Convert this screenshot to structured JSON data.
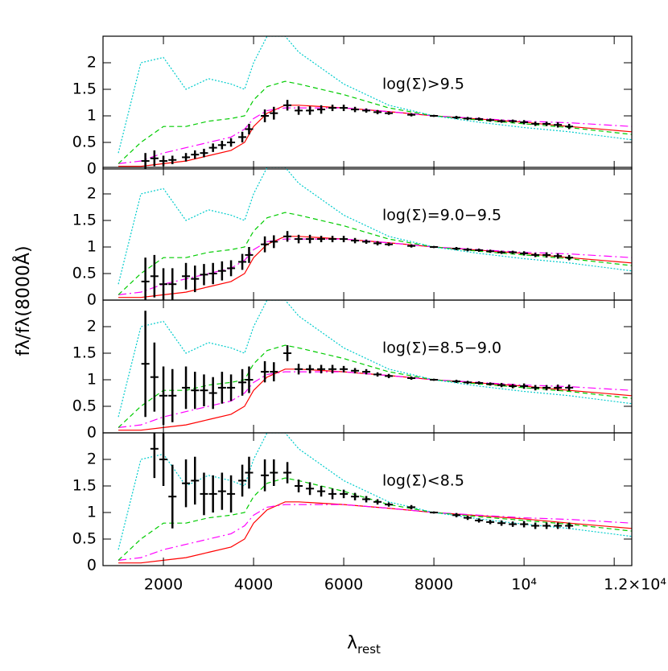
{
  "chart_data": {
    "type": "errorbar",
    "xlabel": "λ",
    "xlabel_sub": "rest",
    "ylabel": "fλ/fλ(8000Å)",
    "xlim": [
      660,
      12390
    ],
    "ylim": [
      0,
      2.5
    ],
    "xticks": [
      2000,
      4000,
      6000,
      8000,
      {
        "value": 10000,
        "label": "10⁴"
      },
      {
        "value": 12000,
        "label": "1.2×10⁴"
      }
    ],
    "yticks": [
      0,
      0.5,
      1,
      1.5,
      2
    ],
    "x": [
      1600,
      1800,
      2000,
      2200,
      2500,
      2700,
      2900,
      3100,
      3300,
      3500,
      3750,
      3900,
      4250,
      4450,
      4750,
      5000,
      5250,
      5500,
      5750,
      6000,
      6250,
      6500,
      6750,
      7000,
      7500,
      8000,
      8500,
      8750,
      9000,
      9250,
      9500,
      9750,
      10000,
      10250,
      10500,
      10750,
      11000
    ],
    "color": "#000000",
    "models": [
      {
        "color": "#ff0000",
        "dash": "none",
        "x": [
          1000,
          1500,
          2000,
          2500,
          3000,
          3500,
          3800,
          4000,
          4300,
          4700,
          5000,
          6000,
          7000,
          8000,
          9000,
          10000,
          11000,
          12390
        ],
        "values": [
          0.05,
          0.05,
          0.1,
          0.15,
          0.25,
          0.35,
          0.5,
          0.8,
          1.05,
          1.2,
          1.2,
          1.15,
          1.08,
          1.0,
          0.94,
          0.88,
          0.8,
          0.7
        ]
      },
      {
        "color": "#ff00ff",
        "dash": "10 4 2 4",
        "x": [
          1000,
          1500,
          2000,
          2500,
          3000,
          3500,
          3800,
          4000,
          4300,
          4700,
          5000,
          6000,
          7000,
          8000,
          9000,
          10000,
          11000,
          12390
        ],
        "values": [
          0.1,
          0.15,
          0.3,
          0.4,
          0.5,
          0.6,
          0.75,
          0.95,
          1.1,
          1.15,
          1.15,
          1.15,
          1.08,
          1.0,
          0.95,
          0.9,
          0.87,
          0.8
        ]
      },
      {
        "color": "#00cc00",
        "dash": "6 4",
        "x": [
          1000,
          1500,
          2000,
          2500,
          3000,
          3500,
          3800,
          4000,
          4300,
          4700,
          5000,
          6000,
          7000,
          8000,
          9000,
          10000,
          11000,
          12390
        ],
        "values": [
          0.1,
          0.5,
          0.8,
          0.8,
          0.9,
          0.95,
          1.0,
          1.3,
          1.55,
          1.65,
          1.6,
          1.4,
          1.15,
          1.0,
          0.92,
          0.85,
          0.78,
          0.65
        ]
      },
      {
        "color": "#00cccc",
        "dash": "2 2",
        "x": [
          1000,
          1500,
          2000,
          2500,
          3000,
          3500,
          3800,
          4000,
          4300,
          4700,
          5000,
          6000,
          7000,
          8000,
          9000,
          10000,
          11000,
          12390
        ],
        "values": [
          0.3,
          2.0,
          2.1,
          1.5,
          1.7,
          1.6,
          1.5,
          2.0,
          2.5,
          2.5,
          2.2,
          1.6,
          1.2,
          1.0,
          0.88,
          0.78,
          0.7,
          0.55
        ]
      }
    ],
    "panels": [
      {
        "label": "log(Σ)>9.5",
        "values": [
          0.15,
          0.2,
          0.15,
          0.17,
          0.22,
          0.27,
          0.3,
          0.4,
          0.45,
          0.5,
          0.6,
          0.75,
          1.0,
          1.05,
          1.2,
          1.1,
          1.1,
          1.12,
          1.15,
          1.15,
          1.12,
          1.1,
          1.07,
          1.05,
          1.02,
          1.0,
          0.97,
          0.95,
          0.94,
          0.92,
          0.9,
          0.9,
          0.88,
          0.85,
          0.85,
          0.83,
          0.8
        ],
        "errors": [
          0.15,
          0.15,
          0.1,
          0.08,
          0.08,
          0.08,
          0.08,
          0.08,
          0.08,
          0.08,
          0.1,
          0.1,
          0.12,
          0.12,
          0.1,
          0.08,
          0.08,
          0.08,
          0.06,
          0.06,
          0.05,
          0.04,
          0.04,
          0.03,
          0.03,
          0.02,
          0.03,
          0.03,
          0.03,
          0.03,
          0.03,
          0.03,
          0.04,
          0.04,
          0.04,
          0.05,
          0.05
        ]
      },
      {
        "label": "log(Σ)=9.0−9.5",
        "values": [
          0.35,
          0.45,
          0.3,
          0.3,
          0.45,
          0.4,
          0.48,
          0.5,
          0.55,
          0.6,
          0.72,
          0.85,
          1.05,
          1.1,
          1.2,
          1.15,
          1.15,
          1.15,
          1.15,
          1.15,
          1.12,
          1.1,
          1.07,
          1.05,
          1.02,
          1.0,
          0.97,
          0.95,
          0.94,
          0.92,
          0.9,
          0.9,
          0.88,
          0.85,
          0.85,
          0.83,
          0.8
        ],
        "errors": [
          0.45,
          0.4,
          0.3,
          0.3,
          0.25,
          0.25,
          0.2,
          0.2,
          0.18,
          0.15,
          0.15,
          0.15,
          0.15,
          0.12,
          0.1,
          0.08,
          0.08,
          0.06,
          0.06,
          0.06,
          0.05,
          0.04,
          0.04,
          0.03,
          0.03,
          0.02,
          0.03,
          0.03,
          0.03,
          0.03,
          0.03,
          0.03,
          0.04,
          0.04,
          0.05,
          0.05,
          0.05
        ]
      },
      {
        "label": "log(Σ)=8.5−9.0",
        "values": [
          1.3,
          1.05,
          0.7,
          0.7,
          0.85,
          0.8,
          0.8,
          0.75,
          0.85,
          0.85,
          0.95,
          1.0,
          1.15,
          1.15,
          1.5,
          1.2,
          1.2,
          1.2,
          1.2,
          1.2,
          1.17,
          1.15,
          1.1,
          1.07,
          1.03,
          1.0,
          0.97,
          0.95,
          0.94,
          0.92,
          0.9,
          0.88,
          0.88,
          0.85,
          0.85,
          0.85,
          0.85
        ],
        "errors": [
          1.0,
          0.65,
          0.55,
          0.5,
          0.4,
          0.35,
          0.3,
          0.3,
          0.3,
          0.25,
          0.25,
          0.25,
          0.2,
          0.18,
          0.15,
          0.1,
          0.08,
          0.08,
          0.08,
          0.06,
          0.05,
          0.05,
          0.04,
          0.04,
          0.03,
          0.02,
          0.03,
          0.03,
          0.03,
          0.03,
          0.04,
          0.04,
          0.05,
          0.05,
          0.05,
          0.06,
          0.06
        ]
      },
      {
        "label": "log(Σ)<8.5",
        "values": [
          null,
          2.2,
          2.0,
          1.3,
          1.55,
          1.6,
          1.35,
          1.35,
          1.4,
          1.35,
          1.6,
          1.75,
          1.7,
          1.75,
          1.75,
          1.5,
          1.45,
          1.4,
          1.35,
          1.35,
          1.3,
          1.25,
          1.2,
          1.15,
          1.1,
          1.0,
          0.95,
          0.9,
          0.85,
          0.82,
          0.8,
          0.78,
          0.78,
          0.75,
          0.75,
          0.75,
          0.75
        ],
        "errors": [
          null,
          0.55,
          0.5,
          0.6,
          0.45,
          0.45,
          0.4,
          0.35,
          0.35,
          0.35,
          0.3,
          0.3,
          0.3,
          0.25,
          0.2,
          0.12,
          0.12,
          0.1,
          0.1,
          0.08,
          0.07,
          0.06,
          0.05,
          0.04,
          0.04,
          0.02,
          0.04,
          0.04,
          0.04,
          0.04,
          0.05,
          0.05,
          0.06,
          0.06,
          0.06,
          0.06,
          0.06
        ]
      }
    ]
  }
}
